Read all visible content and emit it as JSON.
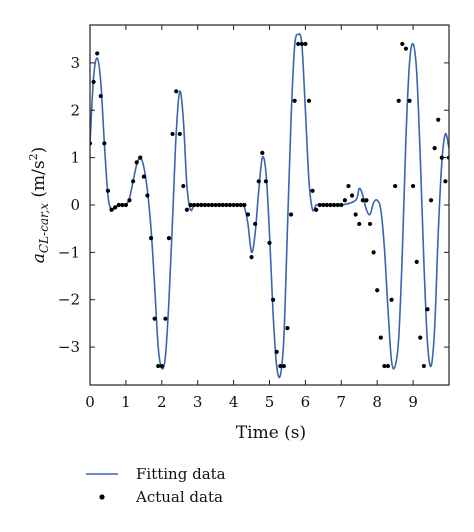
{
  "chart_data": {
    "type": "line",
    "title": "",
    "xlabel": "Time (s)",
    "ylabel_main": "a",
    "ylabel_sub": "CL-car,x",
    "ylabel_unit_open": " (m/s",
    "ylabel_unit_sup": "2",
    "ylabel_unit_close": ")",
    "xlim": [
      0,
      10
    ],
    "ylim": [
      -3.8,
      3.8
    ],
    "x_ticks": [
      0,
      1,
      2,
      3,
      4,
      5,
      6,
      7,
      8,
      9
    ],
    "y_ticks": [
      -3,
      -2,
      -1,
      0,
      1,
      2,
      3
    ],
    "grid": false,
    "legend_position": "bottom",
    "colors": {
      "fitting": "#3a64b0",
      "actual": "#000000",
      "axis": "#222222"
    },
    "series": [
      {
        "name": "Fitting data",
        "style": "line",
        "x": [
          0,
          0.1,
          0.2,
          0.3,
          0.4,
          0.5,
          0.6,
          0.7,
          0.8,
          0.9,
          1.0,
          1.1,
          1.2,
          1.3,
          1.4,
          1.5,
          1.6,
          1.7,
          1.8,
          1.9,
          2.0,
          2.1,
          2.2,
          2.3,
          2.4,
          2.5,
          2.6,
          2.7,
          2.8,
          2.9,
          3.0,
          3.5,
          4.0,
          4.2,
          4.3,
          4.4,
          4.5,
          4.6,
          4.7,
          4.8,
          4.9,
          5.0,
          5.1,
          5.2,
          5.3,
          5.4,
          5.5,
          5.6,
          5.7,
          5.8,
          5.9,
          6.0,
          6.1,
          6.2,
          6.3,
          6.4,
          6.5,
          7.0,
          7.4,
          7.5,
          7.6,
          7.7,
          7.8,
          7.9,
          8.0,
          8.1,
          8.2,
          8.3,
          8.4,
          8.5,
          8.6,
          8.7,
          8.8,
          8.9,
          9.0,
          9.1,
          9.2,
          9.3,
          9.4,
          9.5,
          9.6,
          9.7,
          9.8,
          9.9,
          10.0
        ],
        "y": [
          1.3,
          2.7,
          3.1,
          2.6,
          1.3,
          0.2,
          -0.1,
          -0.05,
          0,
          0,
          0,
          0.15,
          0.5,
          0.85,
          1.0,
          0.8,
          0.3,
          -0.5,
          -1.7,
          -3.0,
          -3.45,
          -3.2,
          -2.0,
          -0.3,
          1.5,
          2.4,
          1.8,
          0.4,
          -0.1,
          0,
          0,
          0,
          0,
          0,
          -0.05,
          -0.4,
          -1.0,
          -0.6,
          0.3,
          1.0,
          0.7,
          -0.6,
          -2.3,
          -3.4,
          -3.6,
          -2.8,
          -0.5,
          1.8,
          3.35,
          3.6,
          3.4,
          2.0,
          0.5,
          -0.1,
          0,
          0,
          0,
          0,
          0.1,
          0.35,
          0.2,
          -0.1,
          -0.2,
          0.05,
          0.1,
          -0.1,
          -0.9,
          -2.2,
          -3.3,
          -3.4,
          -2.8,
          -1.0,
          1.4,
          3.0,
          3.4,
          2.8,
          1.0,
          -1.2,
          -2.9,
          -3.4,
          -2.6,
          -0.6,
          0.9,
          1.5,
          1.2
        ]
      },
      {
        "name": "Actual data",
        "style": "markers",
        "x": [
          0,
          0.1,
          0.2,
          0.3,
          0.4,
          0.5,
          0.6,
          0.7,
          0.8,
          0.9,
          1.0,
          1.1,
          1.2,
          1.3,
          1.4,
          1.5,
          1.6,
          1.7,
          1.8,
          1.9,
          2.0,
          2.1,
          2.2,
          2.3,
          2.4,
          2.5,
          2.6,
          2.7,
          2.8,
          2.9,
          3.0,
          3.1,
          3.2,
          3.3,
          3.4,
          3.5,
          3.6,
          3.7,
          3.8,
          3.9,
          4.0,
          4.1,
          4.2,
          4.3,
          4.4,
          4.5,
          4.6,
          4.7,
          4.8,
          4.9,
          5.0,
          5.1,
          5.2,
          5.3,
          5.4,
          5.5,
          5.6,
          5.7,
          5.8,
          5.9,
          6.0,
          6.1,
          6.2,
          6.3,
          6.4,
          6.5,
          6.6,
          6.7,
          6.8,
          6.9,
          7.0,
          7.1,
          7.2,
          7.3,
          7.4,
          7.5,
          7.6,
          7.7,
          7.8,
          7.9,
          8.0,
          8.1,
          8.2,
          8.3,
          8.4,
          8.5,
          8.6,
          8.7,
          8.8,
          8.9,
          9.0,
          9.1,
          9.2,
          9.3,
          9.4,
          9.5,
          9.6,
          9.7,
          9.8,
          9.9,
          10.0
        ],
        "y": [
          1.3,
          2.6,
          3.2,
          2.3,
          1.3,
          0.3,
          -0.1,
          -0.05,
          0,
          0,
          0,
          0.1,
          0.5,
          0.9,
          1.0,
          0.6,
          0.2,
          -0.7,
          -2.4,
          -3.4,
          -3.4,
          -2.4,
          -0.7,
          1.5,
          2.4,
          1.5,
          0.4,
          -0.1,
          0,
          0,
          0,
          0,
          0,
          0,
          0,
          0,
          0,
          0,
          0,
          0,
          0,
          0,
          0,
          0,
          -0.2,
          -1.1,
          -0.4,
          0.5,
          1.1,
          0.5,
          -0.8,
          -2.0,
          -3.1,
          -3.4,
          -3.4,
          -2.6,
          -0.2,
          2.2,
          3.4,
          3.4,
          3.4,
          2.2,
          0.3,
          -0.1,
          0,
          0,
          0,
          0,
          0,
          0,
          0,
          0.1,
          0.4,
          0.2,
          -0.2,
          -0.4,
          0.1,
          0.1,
          -0.4,
          -1.0,
          -1.8,
          -2.8,
          -3.4,
          -3.4,
          -2.0,
          0.4,
          2.2,
          3.4,
          3.3,
          2.2,
          0.4,
          -1.2,
          -2.8,
          -3.4,
          -2.2,
          0.1,
          1.2,
          1.8,
          1.0,
          0.5,
          1.0
        ]
      }
    ]
  }
}
